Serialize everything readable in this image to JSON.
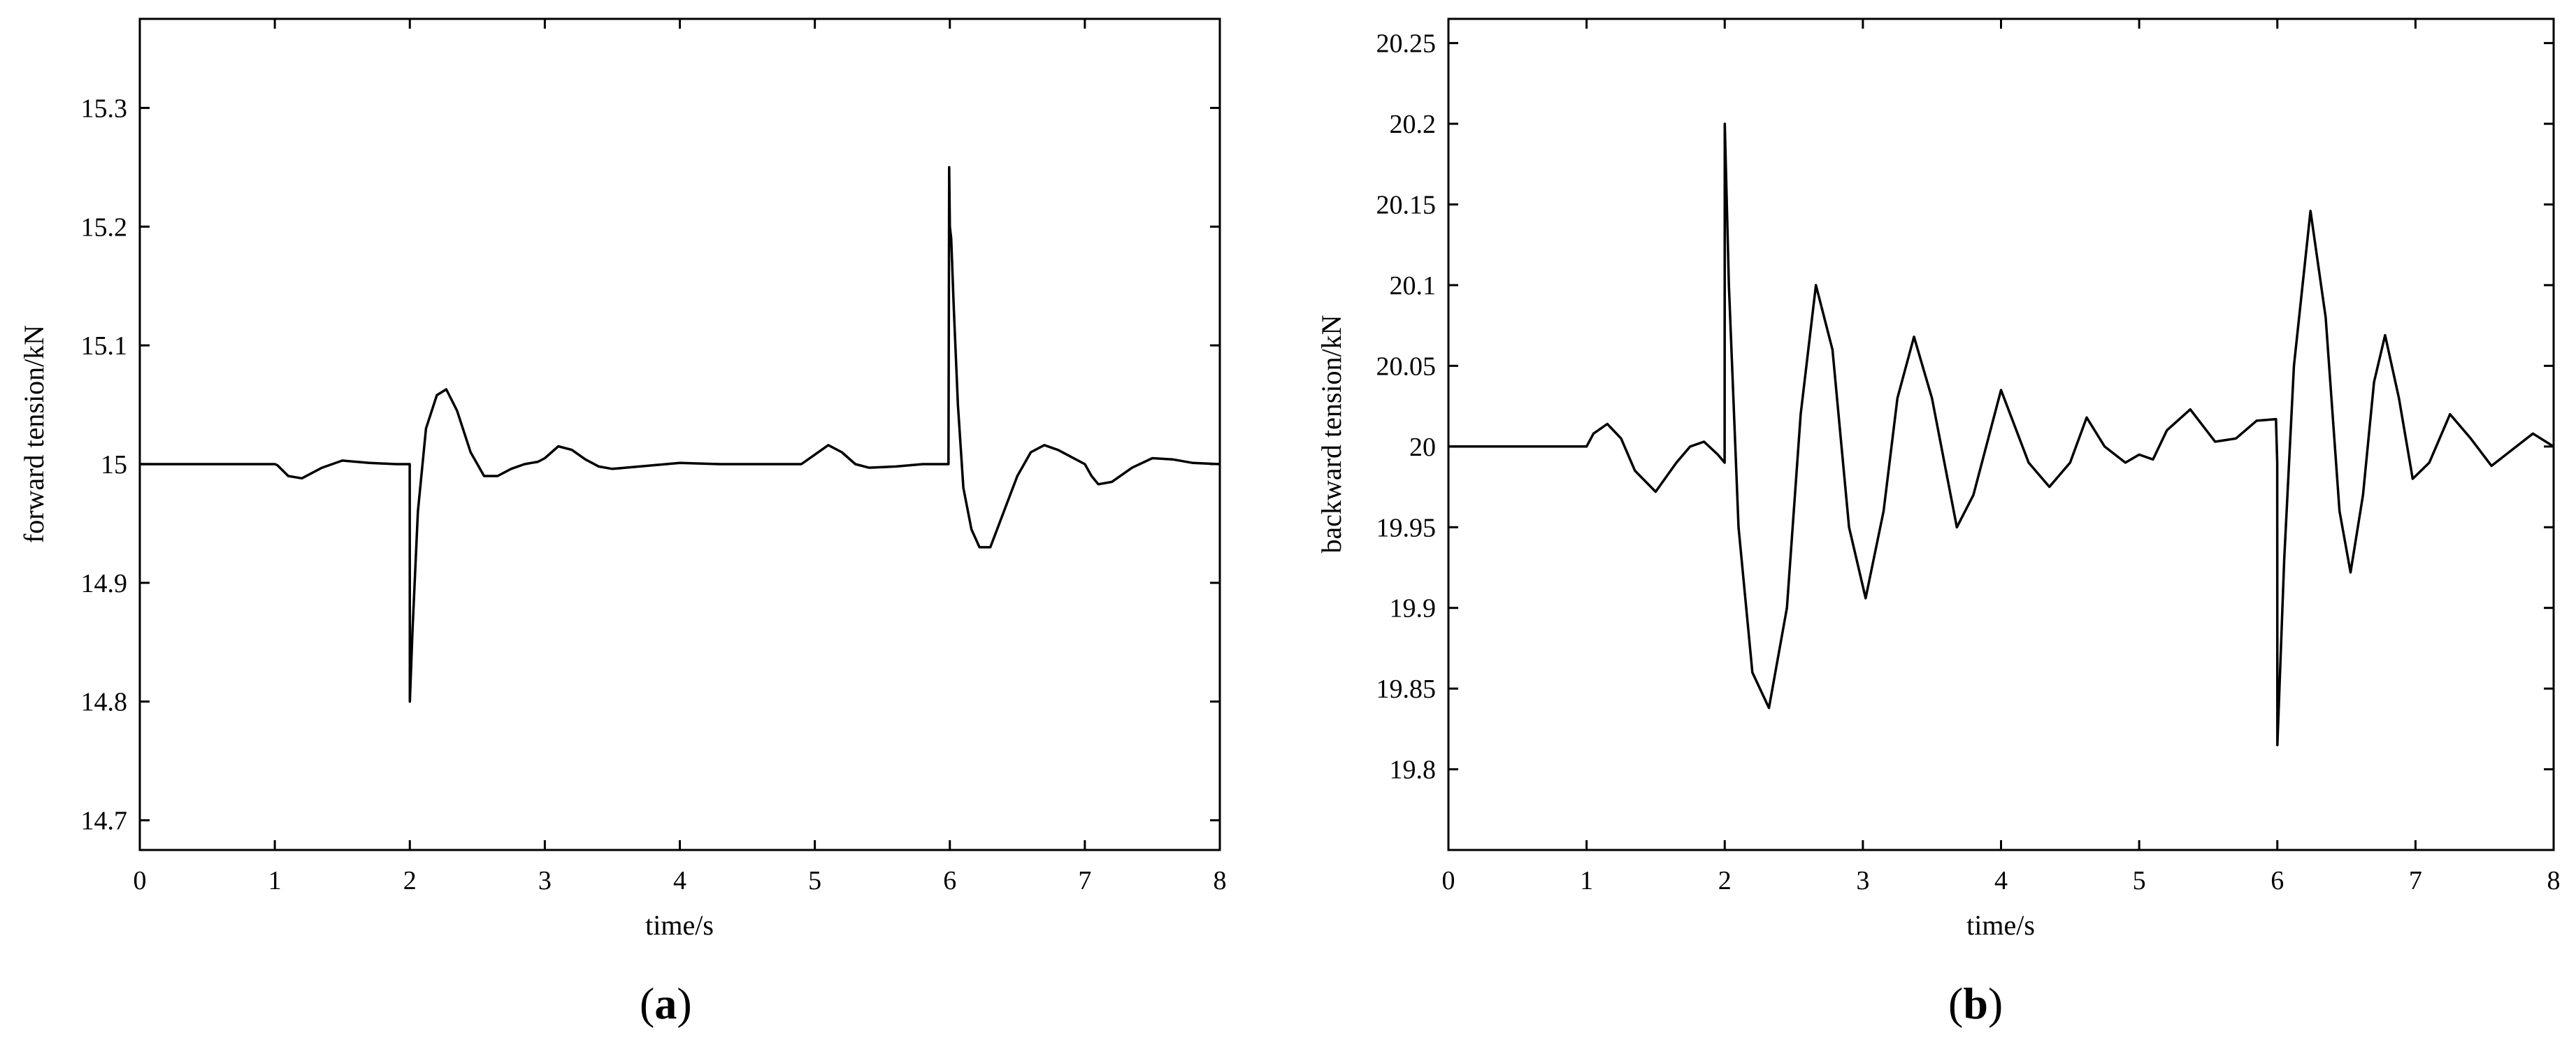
{
  "chart_data": [
    {
      "type": "line",
      "panel_label": "a",
      "xlabel": "time/s",
      "ylabel": "forward tension/kN",
      "xlim": [
        0,
        8
      ],
      "ylim": [
        14.675,
        15.375
      ],
      "x_ticks": [
        "0",
        "1",
        "2",
        "3",
        "4",
        "5",
        "6",
        "7",
        "8"
      ],
      "y_ticks": [
        "14.7",
        "14.8",
        "14.9",
        "15",
        "15.1",
        "15.2",
        "15.3"
      ],
      "series": [
        {
          "x": [
            0,
            0.5,
            1,
            1.02,
            1.1,
            1.2,
            1.35,
            1.5,
            1.7,
            1.9,
            1.98,
            1.999,
            2.0,
            2.02,
            2.06,
            2.12,
            2.2,
            2.27,
            2.35,
            2.45,
            2.55,
            2.65,
            2.75,
            2.85,
            2.95,
            3.0,
            3.1,
            3.2,
            3.3,
            3.4,
            3.5,
            3.7,
            4.0,
            4.3,
            4.6,
            4.9,
            5.0,
            5.1,
            5.2,
            5.3,
            5.4,
            5.6,
            5.8,
            5.99,
            5.995,
            6.0,
            6.01,
            6.03,
            6.06,
            6.1,
            6.16,
            6.22,
            6.3,
            6.4,
            6.5,
            6.6,
            6.7,
            6.8,
            6.9,
            7.0,
            7.05,
            7.1,
            7.2,
            7.35,
            7.5,
            7.65,
            7.8,
            8.0
          ],
          "y": [
            15.0,
            15.0,
            15.0,
            14.999,
            14.99,
            14.988,
            14.997,
            15.003,
            15.001,
            15.0,
            15.0,
            15.0,
            14.8,
            14.86,
            14.96,
            15.03,
            15.058,
            15.063,
            15.045,
            15.01,
            14.99,
            14.99,
            14.996,
            15.0,
            15.002,
            15.005,
            15.015,
            15.012,
            15.004,
            14.998,
            14.996,
            14.998,
            15.001,
            15.0,
            15.0,
            15.0,
            15.008,
            15.016,
            15.01,
            15.0,
            14.997,
            14.998,
            15.0,
            15.0,
            15.25,
            15.2,
            15.19,
            15.13,
            15.05,
            14.98,
            14.945,
            14.93,
            14.93,
            14.96,
            14.99,
            15.01,
            15.016,
            15.012,
            15.006,
            15.0,
            14.99,
            14.983,
            14.985,
            14.997,
            15.005,
            15.004,
            15.001,
            15.0
          ]
        }
      ]
    },
    {
      "type": "line",
      "panel_label": "b",
      "xlabel": "time/s",
      "ylabel": "backward tension/kN",
      "xlim": [
        0,
        8
      ],
      "ylim": [
        19.75,
        20.265
      ],
      "x_ticks": [
        "0",
        "1",
        "2",
        "3",
        "4",
        "5",
        "6",
        "7",
        "8"
      ],
      "y_ticks": [
        "19.8",
        "19.85",
        "19.9",
        "19.95",
        "20",
        "20.05",
        "20.1",
        "20.15",
        "20.2",
        "20.25"
      ],
      "series": [
        {
          "x": [
            0,
            0.5,
            1,
            1.05,
            1.15,
            1.25,
            1.35,
            1.5,
            1.65,
            1.75,
            1.85,
            1.95,
            1.999,
            2.0,
            2.03,
            2.1,
            2.2,
            2.32,
            2.45,
            2.55,
            2.66,
            2.78,
            2.9,
            3.02,
            3.15,
            3.25,
            3.37,
            3.5,
            3.68,
            3.8,
            4.0,
            4.2,
            4.35,
            4.5,
            4.62,
            4.75,
            4.9,
            5.0,
            5.1,
            5.2,
            5.37,
            5.55,
            5.7,
            5.85,
            5.99,
            5.999,
            6.0,
            6.05,
            6.12,
            6.24,
            6.35,
            6.45,
            6.53,
            6.62,
            6.7,
            6.78,
            6.88,
            6.98,
            7.1,
            7.25,
            7.4,
            7.55,
            7.7,
            7.85,
            8.0
          ],
          "y": [
            20.0,
            20.0,
            20.0,
            20.008,
            20.014,
            20.005,
            19.985,
            19.972,
            19.99,
            20.0,
            20.003,
            19.995,
            19.99,
            20.2,
            20.1,
            19.95,
            19.86,
            19.838,
            19.9,
            20.02,
            20.1,
            20.06,
            19.95,
            19.906,
            19.96,
            20.03,
            20.068,
            20.03,
            19.95,
            19.97,
            20.035,
            19.99,
            19.975,
            19.99,
            20.018,
            20.0,
            19.99,
            19.995,
            19.992,
            20.01,
            20.023,
            20.003,
            20.005,
            20.016,
            20.017,
            19.99,
            19.815,
            19.93,
            20.05,
            20.146,
            20.08,
            19.96,
            19.922,
            19.97,
            20.04,
            20.069,
            20.03,
            19.98,
            19.99,
            20.02,
            20.005,
            19.988,
            19.998,
            20.008,
            20.0
          ]
        }
      ]
    }
  ]
}
